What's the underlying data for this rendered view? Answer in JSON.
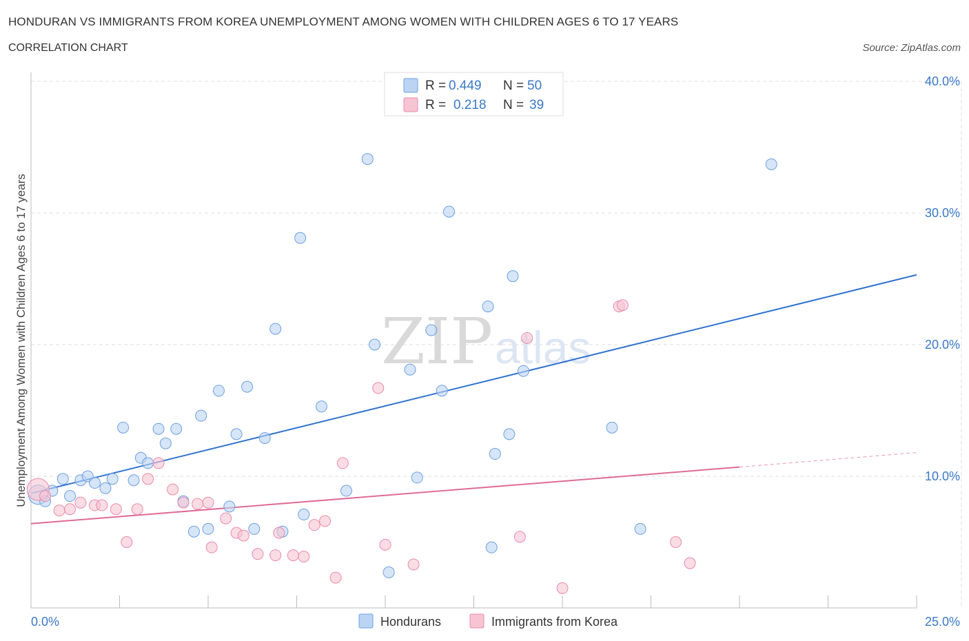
{
  "title": "HONDURAN VS IMMIGRANTS FROM KOREA UNEMPLOYMENT AMONG WOMEN WITH CHILDREN AGES 6 TO 17 YEARS",
  "subtitle": "CORRELATION CHART",
  "source": "Source: ZipAtlas.com",
  "watermark": {
    "zip": "ZIP",
    "atlas": "atlas"
  },
  "colors": {
    "blue_fill": "#bcd4f4",
    "blue_stroke": "#6b9fe0",
    "blue_line": "#2f72d0",
    "pink_fill": "#f7c4d4",
    "pink_stroke": "#e98aa9",
    "pink_line": "#e06a94",
    "tick_text": "#3a78c9",
    "grid": "#dddddd"
  },
  "legend": {
    "r_label": "R =",
    "n_label": "N =",
    "rows": [
      {
        "r": "0.449",
        "n": "50"
      },
      {
        "r": "0.218",
        "n": "39"
      }
    ]
  },
  "chart_data": {
    "type": "scatter",
    "title": "HONDURAN VS IMMIGRANTS FROM KOREA UNEMPLOYMENT AMONG WOMEN WITH CHILDREN AGES 6 TO 17 YEARS",
    "xlabel": "",
    "ylabel": "Unemployment Among Women with Children Ages 6 to 17 years",
    "xlim": [
      0,
      25
    ],
    "ylim": [
      0,
      40.5
    ],
    "x_tick_labels": [
      "0.0%",
      "25.0%"
    ],
    "y_ticks": [
      10,
      20,
      30,
      40
    ],
    "y_tick_labels": [
      "10.0%",
      "20.0%",
      "30.0%",
      "40.0%"
    ],
    "grid": true,
    "legend_position": "top-center",
    "series": [
      {
        "name": "Hondurans",
        "points": [
          [
            0.2,
            8.6
          ],
          [
            0.4,
            8.1
          ],
          [
            0.6,
            8.9
          ],
          [
            0.9,
            9.8
          ],
          [
            1.1,
            8.5
          ],
          [
            1.4,
            9.7
          ],
          [
            1.6,
            10.0
          ],
          [
            1.8,
            9.5
          ],
          [
            2.1,
            9.1
          ],
          [
            2.3,
            9.8
          ],
          [
            2.6,
            13.7
          ],
          [
            2.9,
            9.7
          ],
          [
            3.1,
            11.4
          ],
          [
            3.3,
            11.0
          ],
          [
            3.6,
            13.6
          ],
          [
            3.8,
            12.5
          ],
          [
            4.1,
            13.6
          ],
          [
            4.3,
            8.1
          ],
          [
            4.6,
            5.8
          ],
          [
            4.8,
            14.6
          ],
          [
            5.0,
            6.0
          ],
          [
            5.3,
            16.5
          ],
          [
            5.6,
            7.7
          ],
          [
            5.8,
            13.2
          ],
          [
            6.1,
            16.8
          ],
          [
            6.3,
            6.0
          ],
          [
            6.6,
            12.9
          ],
          [
            6.9,
            21.2
          ],
          [
            7.1,
            5.8
          ],
          [
            7.6,
            28.1
          ],
          [
            7.7,
            7.1
          ],
          [
            8.2,
            15.3
          ],
          [
            8.9,
            8.9
          ],
          [
            9.5,
            34.1
          ],
          [
            9.7,
            20.0
          ],
          [
            10.1,
            2.7
          ],
          [
            10.7,
            18.1
          ],
          [
            10.9,
            9.9
          ],
          [
            11.3,
            21.1
          ],
          [
            11.6,
            16.5
          ],
          [
            11.8,
            30.1
          ],
          [
            12.9,
            22.9
          ],
          [
            13.0,
            4.6
          ],
          [
            13.1,
            11.7
          ],
          [
            13.5,
            13.2
          ],
          [
            13.6,
            25.2
          ],
          [
            13.9,
            18.0
          ],
          [
            16.4,
            13.7
          ],
          [
            17.2,
            6.0
          ],
          [
            20.9,
            33.7
          ]
        ]
      },
      {
        "name": "Immigrants from Korea",
        "points": [
          [
            0.2,
            9.0
          ],
          [
            0.4,
            8.5
          ],
          [
            0.8,
            7.4
          ],
          [
            1.1,
            7.5
          ],
          [
            1.4,
            8.0
          ],
          [
            1.8,
            7.8
          ],
          [
            2.0,
            7.8
          ],
          [
            2.4,
            7.5
          ],
          [
            2.7,
            5.0
          ],
          [
            3.0,
            7.5
          ],
          [
            3.3,
            9.8
          ],
          [
            3.6,
            11.0
          ],
          [
            4.0,
            9.0
          ],
          [
            4.3,
            8.0
          ],
          [
            4.7,
            7.9
          ],
          [
            5.0,
            8.0
          ],
          [
            5.1,
            4.6
          ],
          [
            5.5,
            6.8
          ],
          [
            5.8,
            5.7
          ],
          [
            6.0,
            5.5
          ],
          [
            6.4,
            4.1
          ],
          [
            6.9,
            4.0
          ],
          [
            7.0,
            5.7
          ],
          [
            7.4,
            4.0
          ],
          [
            7.7,
            3.9
          ],
          [
            8.0,
            6.3
          ],
          [
            8.3,
            6.6
          ],
          [
            8.6,
            2.3
          ],
          [
            8.8,
            11.0
          ],
          [
            9.8,
            16.7
          ],
          [
            10.0,
            4.8
          ],
          [
            10.8,
            3.3
          ],
          [
            13.8,
            5.4
          ],
          [
            14.0,
            20.5
          ],
          [
            15.0,
            1.5
          ],
          [
            16.6,
            22.9
          ],
          [
            16.7,
            23.0
          ],
          [
            18.2,
            5.0
          ],
          [
            18.6,
            3.4
          ]
        ]
      }
    ],
    "trendlines": [
      {
        "series": "Hondurans",
        "x": [
          0,
          25
        ],
        "y": [
          8.7,
          25.3
        ]
      },
      {
        "series": "Immigrants from Korea",
        "x": [
          0,
          20
        ],
        "y": [
          6.4,
          10.7
        ],
        "dashed_extension": {
          "x": [
            20,
            25
          ],
          "y": [
            10.7,
            11.8
          ]
        }
      }
    ]
  }
}
